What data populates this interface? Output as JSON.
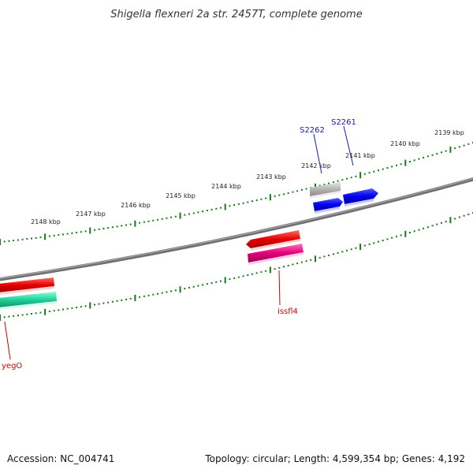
{
  "title": "Shigella flexneri 2a str. 2457T, complete genome",
  "ruler": {
    "tick_color": "#1a7a1a",
    "labels": [
      "2148 kbp",
      "2147 kbp",
      "2146 kbp",
      "2145 kbp",
      "2144 kbp",
      "2143 kbp",
      "2142 kbp",
      "2141 kbp",
      "2140 kbp",
      "2139 kbp"
    ]
  },
  "features": {
    "s2262": {
      "label": "S2262",
      "color": "#1a1ab0"
    },
    "s2261": {
      "label": "S2261",
      "color": "#1a1ab0"
    },
    "issfl4": {
      "label": "issfl4",
      "color": "#cc0000"
    },
    "yego": {
      "label": "yegO",
      "color": "#cc0000"
    }
  },
  "colors": {
    "backbone": "#808080",
    "red_gene": "#e60000",
    "magenta_gene": "#e0007a",
    "blue_gene": "#0000ee",
    "gray_gene": "#b4b4b4",
    "teal_gene": "#22d29a"
  },
  "footer": {
    "accession": "Accession: NC_004741",
    "summary": "Topology: circular; Length: 4,599,354 bp; Genes: 4,192"
  }
}
